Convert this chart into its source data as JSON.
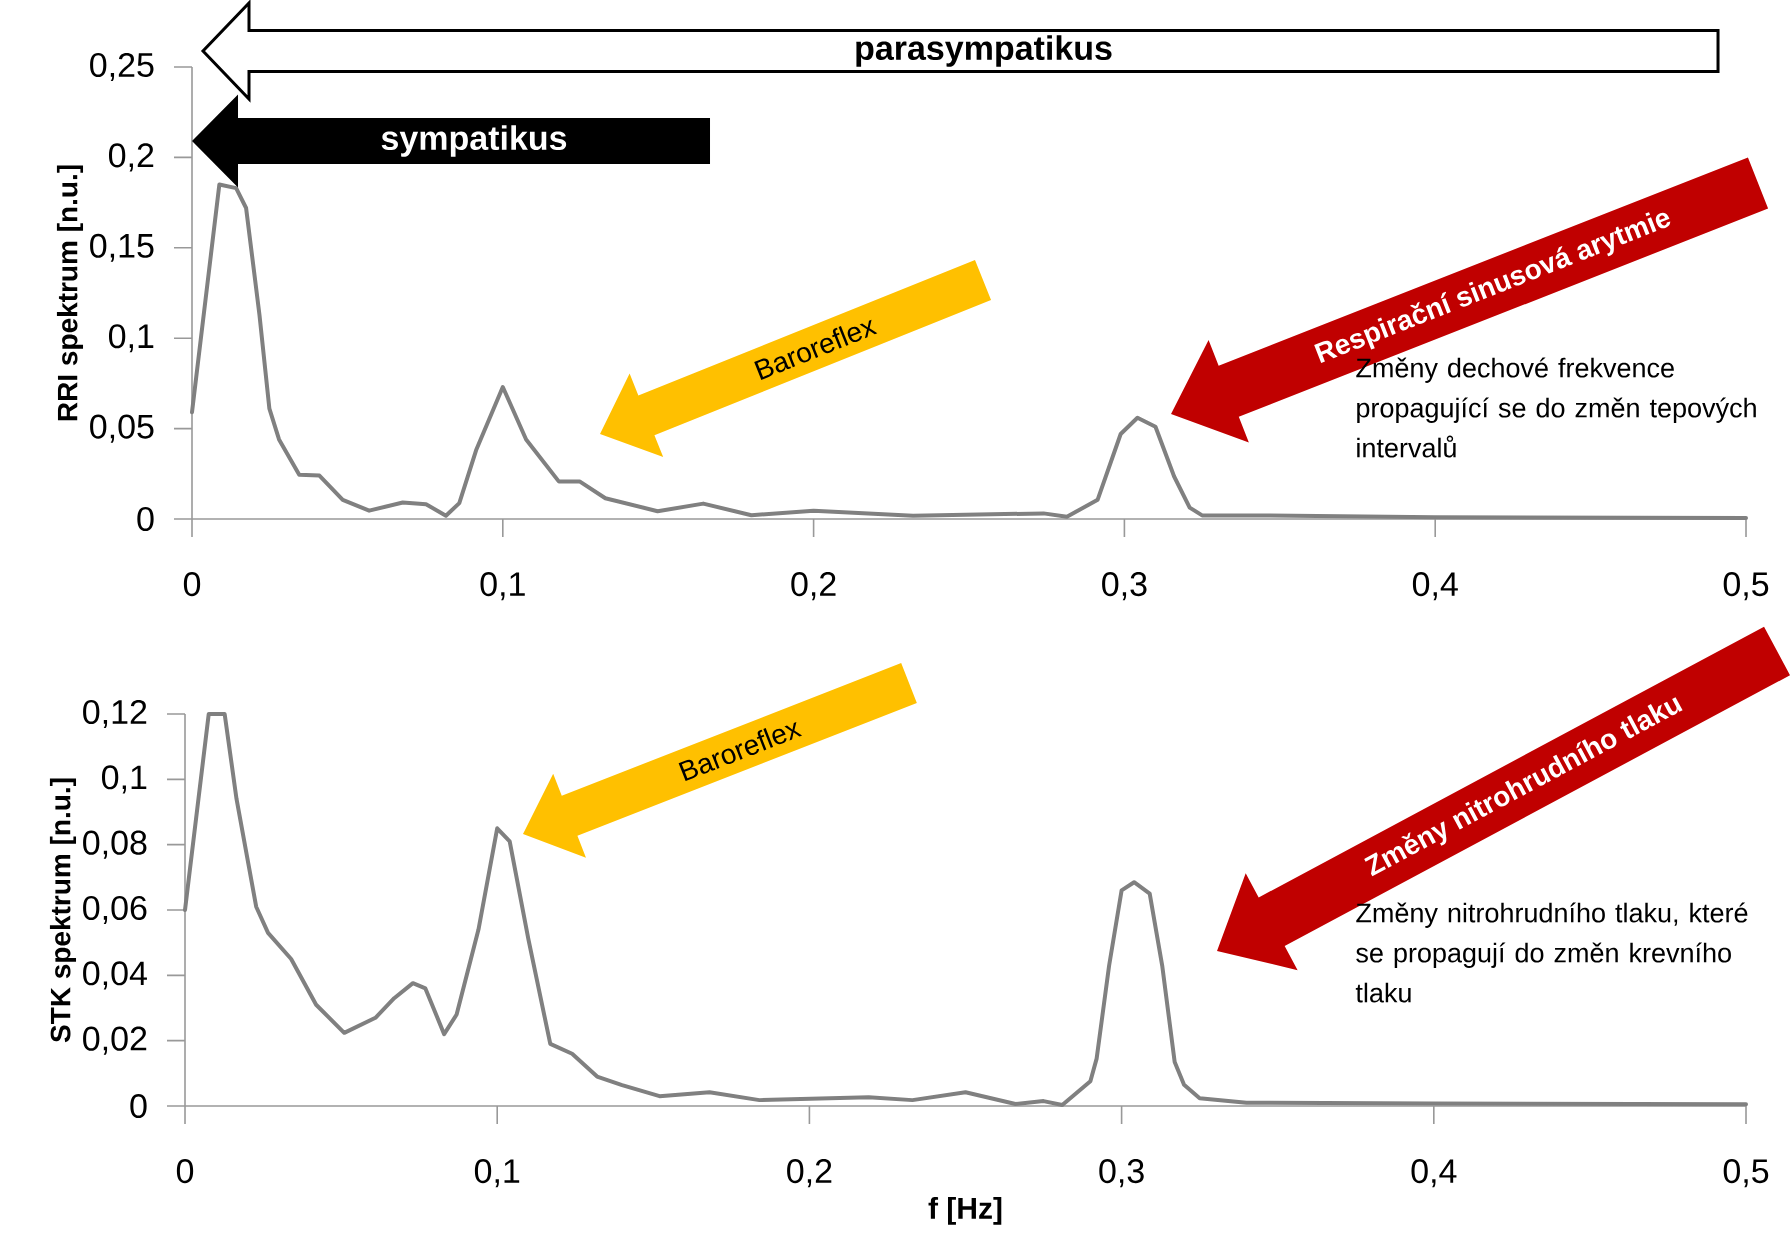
{
  "chart_data": [
    {
      "type": "line",
      "ylabel": "RRI spektrum [n.u.]",
      "color": "#808080",
      "x": [
        0,
        0.0088,
        0.0142,
        0.0174,
        0.0217,
        0.0249,
        0.028,
        0.0345,
        0.041,
        0.0485,
        0.057,
        0.0678,
        0.0753,
        0.0817,
        0.086,
        0.0914,
        0.1,
        0.1075,
        0.118,
        0.1247,
        0.133,
        0.1498,
        0.1645,
        0.18,
        0.2,
        0.232,
        0.274,
        0.2815,
        0.2914,
        0.2988,
        0.3042,
        0.31,
        0.316,
        0.321,
        0.325,
        0.34,
        0.4,
        0.5
      ],
      "values": [
        0.059,
        0.185,
        0.183,
        0.172,
        0.113,
        0.061,
        0.044,
        0.0245,
        0.024,
        0.0106,
        0.0046,
        0.0091,
        0.0082,
        0.0018,
        0.0088,
        0.038,
        0.073,
        0.044,
        0.0208,
        0.0208,
        0.0115,
        0.0043,
        0.0085,
        0.0021,
        0.0046,
        0.0018,
        0.0031,
        0.0012,
        0.0107,
        0.047,
        0.056,
        0.051,
        0.0235,
        0.0063,
        0.002,
        0.002,
        0.001,
        0.0005
      ],
      "xlim": [
        0,
        0.5
      ],
      "ylim": [
        0,
        0.25
      ],
      "xticks": [
        0,
        {
          "value": 0.1,
          "label": "0,1"
        },
        {
          "value": 0.2,
          "label": "0,2"
        },
        {
          "value": 0.3,
          "label": "0,3"
        },
        {
          "value": 0.4,
          "label": "0,4"
        },
        {
          "value": 0.5,
          "label": "0,5"
        }
      ],
      "yticks": [
        0,
        {
          "value": 0.05,
          "label": "0,05"
        },
        {
          "value": 0.1,
          "label": "0,1"
        },
        {
          "value": 0.15,
          "label": "0,15"
        },
        {
          "value": 0.2,
          "label": "0,2"
        },
        {
          "value": 0.25,
          "label": "0,25"
        }
      ],
      "annotations": [
        "parasympatikus",
        "sympatikus",
        "Baroreflex",
        "Respirační sinusová arytmie",
        "Změny dechové frekvence propagující se do změn tepových intervalů"
      ]
    },
    {
      "type": "line",
      "ylabel": "STK spektrum [n.u.]",
      "xlabel": "f [Hz]",
      "color": "#808080",
      "x": [
        0,
        0.0076,
        0.0127,
        0.0165,
        0.0228,
        0.0266,
        0.034,
        0.042,
        0.051,
        0.061,
        0.067,
        0.073,
        0.077,
        0.083,
        0.087,
        0.094,
        0.1,
        0.104,
        0.11,
        0.117,
        0.124,
        0.132,
        0.14,
        0.152,
        0.168,
        0.184,
        0.219,
        0.233,
        0.25,
        0.266,
        0.275,
        0.281,
        0.29,
        0.292,
        0.296,
        0.3,
        0.304,
        0.309,
        0.313,
        0.317,
        0.32,
        0.325,
        0.34,
        0.4,
        0.5
      ],
      "values": [
        0.06,
        0.12,
        0.12,
        0.094,
        0.061,
        0.053,
        0.045,
        0.031,
        0.0224,
        0.027,
        0.033,
        0.0376,
        0.036,
        0.022,
        0.028,
        0.054,
        0.085,
        0.081,
        0.051,
        0.019,
        0.016,
        0.009,
        0.0064,
        0.003,
        0.0042,
        0.0018,
        0.0027,
        0.0018,
        0.0042,
        0.0006,
        0.0015,
        0.0003,
        0.0076,
        0.0145,
        0.043,
        0.066,
        0.0685,
        0.065,
        0.043,
        0.0135,
        0.0065,
        0.0024,
        0.001,
        0.0008,
        0.0005
      ],
      "xlim": [
        0,
        0.5
      ],
      "ylim": [
        0,
        0.12
      ],
      "xticks": [
        0,
        {
          "value": 0.1,
          "label": "0,1"
        },
        {
          "value": 0.2,
          "label": "0,2"
        },
        {
          "value": 0.3,
          "label": "0,3"
        },
        {
          "value": 0.4,
          "label": "0,4"
        },
        {
          "value": 0.5,
          "label": "0,5"
        }
      ],
      "yticks": [
        0,
        {
          "value": 0.02,
          "label": "0,02"
        },
        {
          "value": 0.04,
          "label": "0,04"
        },
        {
          "value": 0.06,
          "label": "0,06"
        },
        {
          "value": 0.08,
          "label": "0,08"
        },
        {
          "value": 0.1,
          "label": "0,1"
        },
        {
          "value": 0.12,
          "label": "0,12"
        }
      ],
      "annotations": [
        "Baroreflex",
        "Změny nitrohrudního tlaku",
        "Změny nitrohrudního tlaku, které se propagují do změn krevního tlaku"
      ]
    }
  ]
}
